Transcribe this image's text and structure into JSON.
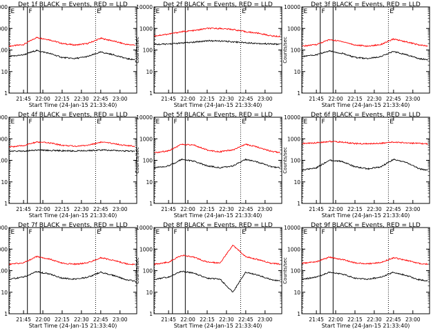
{
  "figure": {
    "xlabel": "Start Time (24-Jan-15 21:33:40)",
    "x_tick_labels": [
      "21:45",
      "22:00",
      "22:15",
      "22:30",
      "22:45",
      "23:00"
    ],
    "y_tick_labels": [
      "1",
      "10",
      "100",
      "1000",
      "10000"
    ],
    "ylabel": "Counts/sec",
    "markers": {
      "F": "F",
      "E": "E"
    }
  },
  "chart_data": [
    {
      "type": "line",
      "title": "Det 1f BLACK = Events, RED = LLD",
      "x_time_range": [
        "21:33:40",
        "23:13"
      ],
      "ylim": [
        1,
        10000
      ],
      "y_scale": "log",
      "vertical_solid": [
        "21:48",
        "21:58"
      ],
      "vertical_dotted": [
        "21:34",
        "22:41"
      ],
      "markers": [
        {
          "label": "E",
          "x": "21:35"
        },
        {
          "label": "F",
          "x": "21:49"
        },
        {
          "label": "E",
          "x": "22:42"
        }
      ],
      "series": [
        {
          "color": "#ff0000",
          "x": [
            "21:34",
            "21:45",
            "21:55",
            "22:05",
            "22:15",
            "22:25",
            "22:35",
            "22:45",
            "22:55",
            "23:05",
            "23:12"
          ],
          "y": [
            150,
            180,
            380,
            300,
            200,
            170,
            200,
            350,
            260,
            180,
            170
          ]
        },
        {
          "color": "#000000",
          "x": [
            "21:34",
            "21:45",
            "21:55",
            "22:05",
            "22:15",
            "22:25",
            "22:35",
            "22:45",
            "22:55",
            "23:05",
            "23:12"
          ],
          "y": [
            50,
            60,
            95,
            70,
            45,
            40,
            50,
            80,
            60,
            40,
            35
          ]
        }
      ]
    },
    {
      "type": "line",
      "title": "Det 2f BLACK = Events, RED = LLD",
      "x_time_range": [
        "21:33:40",
        "23:13"
      ],
      "ylim": [
        1,
        10000
      ],
      "y_scale": "log",
      "vertical_solid": [
        "21:48",
        "21:58"
      ],
      "vertical_dotted": [
        "21:34",
        "22:41"
      ],
      "markers": [
        {
          "label": "E",
          "x": "21:35"
        },
        {
          "label": "F",
          "x": "21:49"
        },
        {
          "label": "E",
          "x": "22:42"
        }
      ],
      "series": [
        {
          "color": "#ff0000",
          "x": [
            "21:34",
            "21:45",
            "21:55",
            "22:05",
            "22:15",
            "22:25",
            "22:35",
            "22:45",
            "22:55",
            "23:05",
            "23:12"
          ],
          "y": [
            450,
            550,
            700,
            800,
            1000,
            1000,
            900,
            700,
            600,
            450,
            420
          ]
        },
        {
          "color": "#000000",
          "x": [
            "21:34",
            "21:45",
            "21:55",
            "22:05",
            "22:15",
            "22:25",
            "22:35",
            "22:45",
            "22:55",
            "23:05",
            "23:12"
          ],
          "y": [
            180,
            190,
            210,
            230,
            270,
            260,
            240,
            220,
            200,
            190,
            185
          ]
        }
      ]
    },
    {
      "type": "line",
      "title": "Det 3f BLACK = Events, RED = LLD",
      "x_time_range": [
        "21:33:40",
        "23:13"
      ],
      "ylim": [
        1,
        10000
      ],
      "y_scale": "log",
      "vertical_solid": [
        "21:48",
        "21:58"
      ],
      "vertical_dotted": [
        "21:34",
        "22:41"
      ],
      "markers": [
        {
          "label": "E",
          "x": "21:35"
        },
        {
          "label": "F",
          "x": "21:49"
        },
        {
          "label": "E",
          "x": "22:42"
        }
      ],
      "series": [
        {
          "color": "#ff0000",
          "x": [
            "21:34",
            "21:45",
            "21:55",
            "22:05",
            "22:15",
            "22:25",
            "22:35",
            "22:45",
            "22:55",
            "23:05",
            "23:12"
          ],
          "y": [
            150,
            180,
            300,
            250,
            170,
            150,
            180,
            320,
            240,
            170,
            150
          ]
        },
        {
          "color": "#000000",
          "x": [
            "21:34",
            "21:45",
            "21:55",
            "22:05",
            "22:15",
            "22:25",
            "22:35",
            "22:45",
            "22:55",
            "23:05",
            "23:12"
          ],
          "y": [
            50,
            60,
            90,
            70,
            45,
            40,
            50,
            85,
            60,
            40,
            35
          ]
        }
      ]
    },
    {
      "type": "line",
      "title": "Det 4f BLACK = Events, RED = LLD",
      "x_time_range": [
        "21:33:40",
        "23:13"
      ],
      "ylim": [
        1,
        10000
      ],
      "y_scale": "log",
      "vertical_solid": [
        "21:48",
        "21:58"
      ],
      "vertical_dotted": [
        "21:34",
        "22:41"
      ],
      "markers": [
        {
          "label": "E",
          "x": "21:35"
        },
        {
          "label": "F",
          "x": "21:49"
        },
        {
          "label": "E",
          "x": "22:42"
        }
      ],
      "series": [
        {
          "color": "#ff0000",
          "x": [
            "21:34",
            "21:45",
            "21:55",
            "22:05",
            "22:15",
            "22:25",
            "22:35",
            "22:45",
            "22:55",
            "23:05",
            "23:12"
          ],
          "y": [
            420,
            480,
            700,
            650,
            500,
            450,
            500,
            700,
            600,
            480,
            450
          ]
        },
        {
          "color": "#000000",
          "x": [
            "21:34",
            "21:45",
            "21:55",
            "22:05",
            "22:15",
            "22:25",
            "22:35",
            "22:45",
            "22:55",
            "23:05",
            "23:12"
          ],
          "y": [
            260,
            270,
            300,
            290,
            280,
            270,
            280,
            300,
            290,
            270,
            260
          ]
        }
      ]
    },
    {
      "type": "line",
      "title": "Det 5f BLACK = Events, RED = LLD",
      "x_time_range": [
        "21:33:40",
        "23:13"
      ],
      "ylim": [
        1,
        10000
      ],
      "y_scale": "log",
      "vertical_solid": [
        "21:48",
        "21:58"
      ],
      "vertical_dotted": [
        "21:34",
        "22:41"
      ],
      "markers": [
        {
          "label": "E",
          "x": "21:35"
        },
        {
          "label": "F",
          "x": "21:49"
        },
        {
          "label": "E",
          "x": "22:42"
        }
      ],
      "series": [
        {
          "color": "#ff0000",
          "x": [
            "21:34",
            "21:45",
            "21:55",
            "22:05",
            "22:15",
            "22:25",
            "22:35",
            "22:45",
            "22:55",
            "23:05",
            "23:12"
          ],
          "y": [
            220,
            280,
            550,
            500,
            300,
            250,
            300,
            550,
            400,
            260,
            230
          ]
        },
        {
          "color": "#000000",
          "x": [
            "21:34",
            "21:45",
            "21:55",
            "22:05",
            "22:15",
            "22:25",
            "22:35",
            "22:45",
            "22:55",
            "23:05",
            "23:12"
          ],
          "y": [
            45,
            55,
            110,
            90,
            55,
            45,
            55,
            110,
            80,
            50,
            45
          ]
        }
      ]
    },
    {
      "type": "line",
      "title": "Det 6f BLACK = Events, RED = LLD",
      "x_time_range": [
        "21:33:40",
        "23:13"
      ],
      "ylim": [
        1,
        10000
      ],
      "y_scale": "log",
      "vertical_solid": [
        "21:48",
        "21:58"
      ],
      "vertical_dotted": [
        "21:34",
        "22:41"
      ],
      "markers": [
        {
          "label": "E",
          "x": "21:35"
        },
        {
          "label": "F",
          "x": "21:49"
        },
        {
          "label": "E",
          "x": "22:42"
        }
      ],
      "series": [
        {
          "color": "#ff0000",
          "x": [
            "21:34",
            "21:45",
            "21:55",
            "22:05",
            "22:15",
            "22:25",
            "22:35",
            "22:45",
            "22:55",
            "23:05",
            "23:12"
          ],
          "y": [
            600,
            650,
            750,
            700,
            600,
            580,
            620,
            700,
            650,
            600,
            580
          ]
        },
        {
          "color": "#000000",
          "x": [
            "21:34",
            "21:45",
            "21:55",
            "22:05",
            "22:15",
            "22:25",
            "22:35",
            "22:45",
            "22:55",
            "23:05",
            "23:12"
          ],
          "y": [
            35,
            45,
            100,
            90,
            50,
            40,
            50,
            110,
            80,
            40,
            35
          ]
        }
      ]
    },
    {
      "type": "line",
      "title": "Det 7f BLACK = Events, RED = LLD",
      "x_time_range": [
        "21:33:40",
        "23:13"
      ],
      "ylim": [
        1,
        10000
      ],
      "y_scale": "log",
      "vertical_solid": [
        "21:48",
        "21:58"
      ],
      "vertical_dotted": [
        "21:34",
        "22:41"
      ],
      "markers": [
        {
          "label": "E",
          "x": "21:35"
        },
        {
          "label": "F",
          "x": "21:49"
        },
        {
          "label": "E",
          "x": "22:42"
        }
      ],
      "series": [
        {
          "color": "#ff0000",
          "x": [
            "21:34",
            "21:45",
            "21:55",
            "22:05",
            "22:15",
            "22:25",
            "22:35",
            "22:45",
            "22:55",
            "23:05",
            "23:12"
          ],
          "y": [
            200,
            230,
            450,
            350,
            220,
            200,
            230,
            400,
            300,
            210,
            190
          ]
        },
        {
          "color": "#000000",
          "x": [
            "21:34",
            "21:45",
            "21:55",
            "22:05",
            "22:15",
            "22:25",
            "22:35",
            "22:45",
            "22:55",
            "23:05",
            "23:12"
          ],
          "y": [
            40,
            50,
            90,
            70,
            45,
            40,
            50,
            85,
            60,
            38,
            33
          ]
        }
      ]
    },
    {
      "type": "line",
      "title": "Det 8f BLACK = Events, RED = LLD",
      "x_time_range": [
        "21:33:40",
        "23:13"
      ],
      "ylim": [
        1,
        10000
      ],
      "y_scale": "log",
      "vertical_solid": [
        "21:48",
        "21:58"
      ],
      "vertical_dotted": [
        "21:34",
        "22:41"
      ],
      "markers": [
        {
          "label": "E",
          "x": "21:35"
        },
        {
          "label": "F",
          "x": "21:49"
        },
        {
          "label": "E",
          "x": "22:42"
        }
      ],
      "series": [
        {
          "color": "#ff0000",
          "x": [
            "21:34",
            "21:45",
            "21:55",
            "22:05",
            "22:15",
            "22:25",
            "22:35",
            "22:45",
            "22:55",
            "23:05",
            "23:12"
          ],
          "y": [
            200,
            250,
            520,
            420,
            250,
            230,
            1500,
            450,
            320,
            220,
            200
          ]
        },
        {
          "color": "#000000",
          "x": [
            "21:34",
            "21:45",
            "21:55",
            "22:05",
            "22:15",
            "22:25",
            "22:35",
            "22:45",
            "22:55",
            "23:05",
            "23:12"
          ],
          "y": [
            40,
            50,
            95,
            75,
            45,
            40,
            10,
            85,
            60,
            38,
            33
          ]
        }
      ]
    },
    {
      "type": "line",
      "title": "Det 9f BLACK = Events, RED = LLD",
      "x_time_range": [
        "21:33:40",
        "23:13"
      ],
      "ylim": [
        1,
        10000
      ],
      "y_scale": "log",
      "vertical_solid": [
        "21:48",
        "21:58"
      ],
      "vertical_dotted": [
        "21:34",
        "22:41"
      ],
      "markers": [
        {
          "label": "E",
          "x": "21:35"
        },
        {
          "label": "F",
          "x": "21:49"
        },
        {
          "label": "E",
          "x": "22:42"
        }
      ],
      "series": [
        {
          "color": "#ff0000",
          "x": [
            "21:34",
            "21:45",
            "21:55",
            "22:05",
            "22:15",
            "22:25",
            "22:35",
            "22:45",
            "22:55",
            "23:05",
            "23:12"
          ],
          "y": [
            220,
            260,
            420,
            330,
            230,
            210,
            240,
            400,
            300,
            220,
            200
          ]
        },
        {
          "color": "#000000",
          "x": [
            "21:34",
            "21:45",
            "21:55",
            "22:05",
            "22:15",
            "22:25",
            "22:35",
            "22:45",
            "22:55",
            "23:05",
            "23:12"
          ],
          "y": [
            40,
            50,
            85,
            70,
            45,
            40,
            50,
            85,
            60,
            38,
            33
          ]
        }
      ]
    }
  ]
}
